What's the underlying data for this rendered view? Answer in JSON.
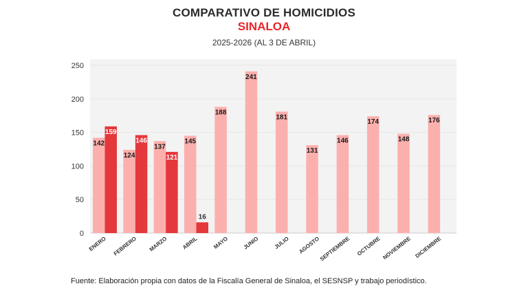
{
  "title": "COMPARATIVO DE HOMICIDIOS",
  "subtitle": "SINALOA",
  "period": "2025-2026 (AL 3 DE ABRIL)",
  "source": "Fuente: Elaboración propia con datos de la Fiscalía General de Sinaloa, el SESNSP y trabajo periodístico.",
  "colors": {
    "light": "#fcb0ae",
    "dark": "#e4383c",
    "plot_bg": "#f3f3f3"
  },
  "chart_data": {
    "type": "bar",
    "categories": [
      "ENERO",
      "FEBRERO",
      "MARZO",
      "ABRIL",
      "MAYO",
      "JUNIO",
      "JULIO",
      "AGOSTO",
      "SEPTIEMBRE",
      "OCTUBRE",
      "NOVIEMBRE",
      "DICIEMBRE"
    ],
    "series": [
      {
        "values": [
          142,
          124,
          137,
          145,
          188,
          241,
          181,
          131,
          146,
          174,
          148,
          176
        ]
      },
      {
        "values": [
          159,
          146,
          121,
          16,
          null,
          null,
          null,
          null,
          null,
          null,
          null,
          null
        ]
      }
    ],
    "ylim": [
      0,
      250
    ],
    "yticks": [
      0,
      50,
      100,
      150,
      200,
      250
    ],
    "grid": true,
    "legend": "none"
  }
}
